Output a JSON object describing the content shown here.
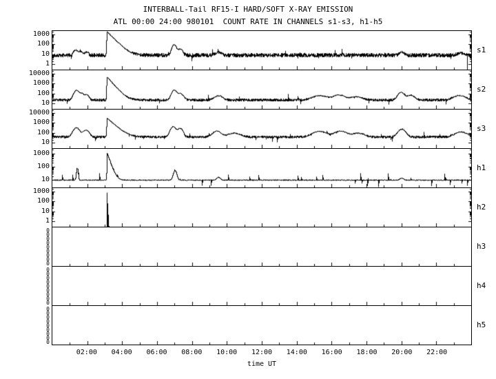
{
  "header": {
    "title": "INTERBALL-Tail RF15-I HARD/SOFT X-RAY EMISSION",
    "subtitle": "ATL 00:00 24:00 980101  COUNT RATE IN CHANNELS s1-s3, h1-h5"
  },
  "chart_data": {
    "type": "line",
    "title": "INTERBALL-Tail RF15-I HARD/SOFT X-RAY EMISSION",
    "subtitle": "ATL 00:00 24:00 980101  COUNT RATE IN CHANNELS s1-s3, h1-h5",
    "xlabel": "time UT",
    "x_range_hours": [
      0,
      24
    ],
    "x_ticks": [
      {
        "hour": 2,
        "label": "02:00"
      },
      {
        "hour": 4,
        "label": "04:00"
      },
      {
        "hour": 6,
        "label": "06:00"
      },
      {
        "hour": 8,
        "label": "08:00"
      },
      {
        "hour": 10,
        "label": "10:00"
      },
      {
        "hour": 12,
        "label": "12:00"
      },
      {
        "hour": 14,
        "label": "14:00"
      },
      {
        "hour": 16,
        "label": "16:00"
      },
      {
        "hour": 18,
        "label": "18:00"
      },
      {
        "hour": 20,
        "label": "20:00"
      },
      {
        "hour": 22,
        "label": "22:00"
      }
    ],
    "grid": false,
    "legend": false,
    "line_color": "#000000",
    "panels": [
      {
        "id": "s1",
        "label": "s1",
        "yticks": [
          1000,
          100,
          10,
          1
        ],
        "log_top": 3.35,
        "log_bottom": -0.55,
        "baseline": 8,
        "noise_log_sigma": 0.22,
        "seed": 101,
        "features": [
          {
            "t": 1.3,
            "a": 18,
            "w": 0.1
          },
          {
            "t": 1.6,
            "a": 12,
            "w": 0.12
          },
          {
            "t": 1.95,
            "a": 9,
            "w": 0.08
          },
          {
            "t": 3.12,
            "a": 1800,
            "rise": 0.02,
            "decay": 0.25
          },
          {
            "t": 6.95,
            "a": 85,
            "w": 0.1
          },
          {
            "t": 7.3,
            "a": 25,
            "w": 0.12
          },
          {
            "t": 9.5,
            "a": 7,
            "w": 0.15
          },
          {
            "t": 20.0,
            "a": 9,
            "w": 0.12
          },
          {
            "t": 23.4,
            "a": 5,
            "w": 0.2
          }
        ],
        "drops": [
          23.78
        ]
      },
      {
        "id": "s2",
        "label": "s2",
        "yticks": [
          10000,
          1000,
          100,
          10
        ],
        "log_top": 4.35,
        "log_bottom": 0.45,
        "baseline": 22,
        "noise_log_sigma": 0.15,
        "seed": 202,
        "features": [
          {
            "t": 1.35,
            "a": 190,
            "w": 0.12
          },
          {
            "t": 1.65,
            "a": 80,
            "w": 0.12
          },
          {
            "t": 1.95,
            "a": 55,
            "w": 0.1
          },
          {
            "t": 3.12,
            "a": 4500,
            "rise": 0.02,
            "decay": 0.22
          },
          {
            "t": 6.95,
            "a": 200,
            "w": 0.12
          },
          {
            "t": 7.3,
            "a": 80,
            "w": 0.15
          },
          {
            "t": 9.5,
            "a": 38,
            "w": 0.2
          },
          {
            "t": 15.3,
            "a": 40,
            "w": 0.35
          },
          {
            "t": 16.4,
            "a": 50,
            "w": 0.3
          },
          {
            "t": 17.4,
            "a": 25,
            "w": 0.3
          },
          {
            "t": 19.95,
            "a": 110,
            "w": 0.15
          },
          {
            "t": 20.5,
            "a": 45,
            "w": 0.2
          },
          {
            "t": 23.3,
            "a": 40,
            "w": 0.3
          }
        ]
      },
      {
        "id": "s3",
        "label": "s3",
        "yticks": [
          10000,
          1000,
          100,
          10
        ],
        "log_top": 4.35,
        "log_bottom": 0.45,
        "baseline": 38,
        "noise_log_sigma": 0.14,
        "seed": 303,
        "features": [
          {
            "t": 1.35,
            "a": 280,
            "w": 0.15
          },
          {
            "t": 1.9,
            "a": 150,
            "w": 0.15
          },
          {
            "t": 3.12,
            "a": 3000,
            "rise": 0.02,
            "decay": 0.28
          },
          {
            "t": 6.9,
            "a": 380,
            "w": 0.13
          },
          {
            "t": 7.3,
            "a": 250,
            "w": 0.12
          },
          {
            "t": 9.4,
            "a": 110,
            "w": 0.2
          },
          {
            "t": 10.4,
            "a": 55,
            "w": 0.3
          },
          {
            "t": 15.3,
            "a": 100,
            "w": 0.35
          },
          {
            "t": 16.5,
            "a": 110,
            "w": 0.3
          },
          {
            "t": 17.5,
            "a": 55,
            "w": 0.3
          },
          {
            "t": 20.0,
            "a": 190,
            "w": 0.18
          },
          {
            "t": 23.4,
            "a": 85,
            "w": 0.3
          }
        ]
      },
      {
        "id": "h1",
        "label": "h1",
        "yticks": [
          1000,
          100,
          10
        ],
        "log_top": 3.35,
        "log_bottom": 0.45,
        "baseline": 10,
        "noise_log_sigma": 0.05,
        "seed": 404,
        "features": [
          {
            "t": 1.4,
            "a": 70,
            "w": 0.04
          },
          {
            "t": 3.12,
            "a": 950,
            "rise": 0.015,
            "decay": 0.12
          },
          {
            "t": 7.0,
            "a": 42,
            "w": 0.08
          },
          {
            "t": 9.5,
            "a": 6,
            "w": 0.1
          },
          {
            "t": 20.0,
            "a": 4,
            "w": 0.1
          }
        ]
      },
      {
        "id": "h2",
        "label": "h2",
        "yticks": [
          1000,
          100,
          10,
          1
        ],
        "log_top": 3.35,
        "log_bottom": -0.55,
        "baseline": 0,
        "spike_only": true,
        "noise_log_sigma": 0,
        "seed": 505,
        "features": [
          {
            "t": 3.12,
            "a": 800,
            "rise": 0.008,
            "decay": 0.015
          }
        ]
      },
      {
        "id": "h3",
        "label": "h3",
        "zeros": 9,
        "empty": true
      },
      {
        "id": "h4",
        "label": "h4",
        "zeros": 9,
        "empty": true
      },
      {
        "id": "h5",
        "label": "h5",
        "zeros": 9,
        "empty": true
      }
    ]
  }
}
